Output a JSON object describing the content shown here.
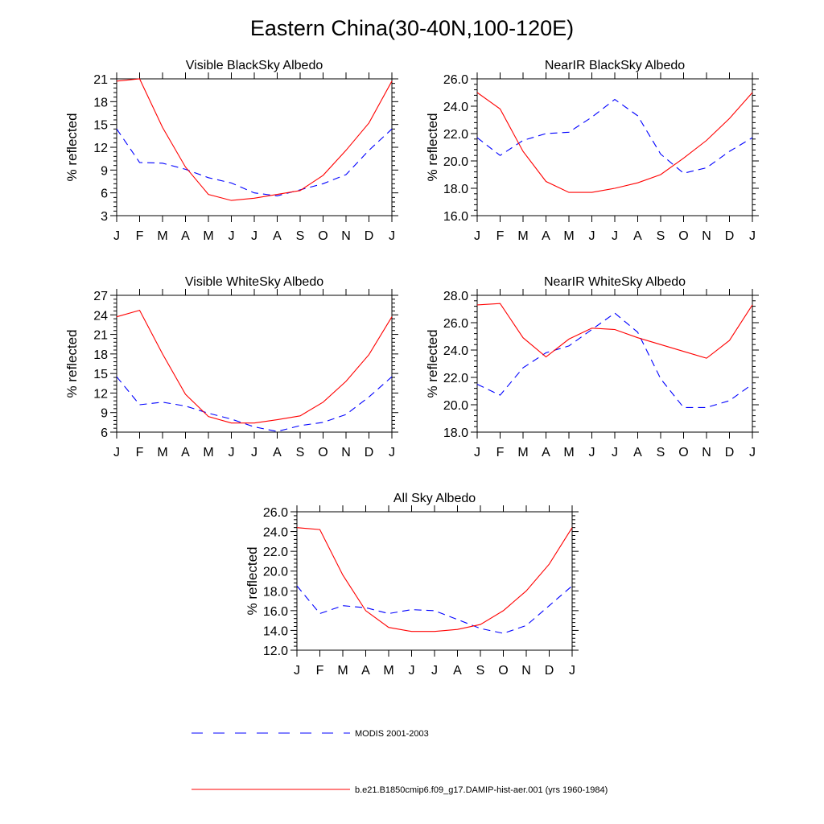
{
  "page": {
    "title": "Eastern China(30-40N,100-120E)"
  },
  "colors": {
    "modis": "#0000ff",
    "model": "#ff0000",
    "axis": "#000000"
  },
  "chart_data": [
    {
      "type": "line",
      "title": "Visible BlackSky Albedo",
      "ylabel": "% reflected",
      "categories": [
        "J",
        "F",
        "M",
        "A",
        "M",
        "J",
        "J",
        "A",
        "S",
        "O",
        "N",
        "D",
        "J"
      ],
      "ylim": [
        3,
        21
      ],
      "yticks": [
        "3",
        "6",
        "9",
        "12",
        "15",
        "18",
        "21"
      ],
      "grid": false,
      "series": [
        {
          "name": "MODIS 2001-2003",
          "style": "dashed",
          "values": [
            14.4,
            10.0,
            9.9,
            9.1,
            8.0,
            7.3,
            6.0,
            5.6,
            6.4,
            7.2,
            8.4,
            11.6,
            14.4
          ]
        },
        {
          "name": "b.e21.B1850cmip6.f09_g17.DAMIP-hist-aer.001 (yrs 1960-1984)",
          "style": "solid",
          "values": [
            20.7,
            21.0,
            14.6,
            9.4,
            5.8,
            5.0,
            5.3,
            5.8,
            6.3,
            8.3,
            11.6,
            15.2,
            20.7
          ]
        }
      ]
    },
    {
      "type": "line",
      "title": "NearIR BlackSky Albedo",
      "ylabel": "% reflected",
      "categories": [
        "J",
        "F",
        "M",
        "A",
        "M",
        "J",
        "J",
        "A",
        "S",
        "O",
        "N",
        "D",
        "J"
      ],
      "ylim": [
        16.0,
        26.0
      ],
      "yticks": [
        "16.0",
        "18.0",
        "20.0",
        "22.0",
        "24.0",
        "26.0"
      ],
      "grid": false,
      "series": [
        {
          "name": "MODIS 2001-2003",
          "style": "dashed",
          "values": [
            21.7,
            20.4,
            21.5,
            22.0,
            22.1,
            23.2,
            24.5,
            23.3,
            20.5,
            19.1,
            19.5,
            20.7,
            21.7
          ]
        },
        {
          "name": "b.e21.B1850cmip6.f09_g17.DAMIP-hist-aer.001 (yrs 1960-1984)",
          "style": "solid",
          "values": [
            25.0,
            23.8,
            20.7,
            18.5,
            17.7,
            17.7,
            18.0,
            18.4,
            19.0,
            20.2,
            21.5,
            23.1,
            25.0
          ]
        }
      ]
    },
    {
      "type": "line",
      "title": "Visible WhiteSky Albedo",
      "ylabel": "% reflected",
      "categories": [
        "J",
        "F",
        "M",
        "A",
        "M",
        "J",
        "J",
        "A",
        "S",
        "O",
        "N",
        "D",
        "J"
      ],
      "ylim": [
        6,
        27
      ],
      "yticks": [
        "6",
        "9",
        "12",
        "15",
        "18",
        "21",
        "24",
        "27"
      ],
      "grid": false,
      "series": [
        {
          "name": "MODIS 2001-2003",
          "style": "dashed",
          "values": [
            14.5,
            10.2,
            10.6,
            10.0,
            8.9,
            8.0,
            6.8,
            6.1,
            7.0,
            7.5,
            8.7,
            11.4,
            14.5
          ]
        },
        {
          "name": "b.e21.B1850cmip6.f09_g17.DAMIP-hist-aer.001 (yrs 1960-1984)",
          "style": "solid",
          "values": [
            23.7,
            24.7,
            18.0,
            11.8,
            8.4,
            7.4,
            7.4,
            7.9,
            8.5,
            10.6,
            13.8,
            17.9,
            23.7
          ]
        }
      ]
    },
    {
      "type": "line",
      "title": "NearIR WhiteSky Albedo",
      "ylabel": "% reflected",
      "categories": [
        "J",
        "F",
        "M",
        "A",
        "M",
        "J",
        "J",
        "A",
        "S",
        "O",
        "N",
        "D",
        "J"
      ],
      "ylim": [
        18.0,
        28.0
      ],
      "yticks": [
        "18.0",
        "20.0",
        "22.0",
        "24.0",
        "26.0",
        "28.0"
      ],
      "grid": false,
      "series": [
        {
          "name": "MODIS 2001-2003",
          "style": "dashed",
          "values": [
            21.5,
            20.7,
            22.7,
            23.8,
            24.3,
            25.5,
            26.7,
            25.3,
            21.9,
            19.8,
            19.8,
            20.3,
            21.5
          ]
        },
        {
          "name": "b.e21.B1850cmip6.f09_g17.DAMIP-hist-aer.001 (yrs 1960-1984)",
          "style": "solid",
          "values": [
            27.3,
            27.4,
            24.9,
            23.5,
            24.8,
            25.6,
            25.5,
            24.9,
            24.4,
            23.9,
            23.4,
            24.7,
            27.3
          ]
        }
      ]
    },
    {
      "type": "line",
      "title": "All Sky Albedo",
      "ylabel": "% reflected",
      "categories": [
        "J",
        "F",
        "M",
        "A",
        "M",
        "J",
        "J",
        "A",
        "S",
        "O",
        "N",
        "D",
        "J"
      ],
      "ylim": [
        12.0,
        26.0
      ],
      "yticks": [
        "12.0",
        "14.0",
        "16.0",
        "18.0",
        "20.0",
        "22.0",
        "24.0",
        "26.0"
      ],
      "grid": false,
      "series": [
        {
          "name": "MODIS 2001-2003",
          "style": "dashed",
          "values": [
            18.5,
            15.7,
            16.5,
            16.3,
            15.7,
            16.1,
            16.0,
            15.1,
            14.2,
            13.7,
            14.5,
            16.5,
            18.5
          ]
        },
        {
          "name": "b.e21.B1850cmip6.f09_g17.DAMIP-hist-aer.001 (yrs 1960-1984)",
          "style": "solid",
          "values": [
            24.4,
            24.2,
            19.6,
            16.0,
            14.3,
            13.9,
            13.9,
            14.1,
            14.6,
            16.0,
            18.0,
            20.7,
            24.4
          ]
        }
      ]
    }
  ],
  "legend": {
    "placement": "bottom-center",
    "entries": [
      {
        "label": "MODIS 2001-2003",
        "style": "dashed",
        "color": "#0000ff"
      },
      {
        "label": "b.e21.B1850cmip6.f09_g17.DAMIP-hist-aer.001 (yrs 1960-1984)",
        "style": "solid",
        "color": "#ff0000"
      }
    ]
  }
}
